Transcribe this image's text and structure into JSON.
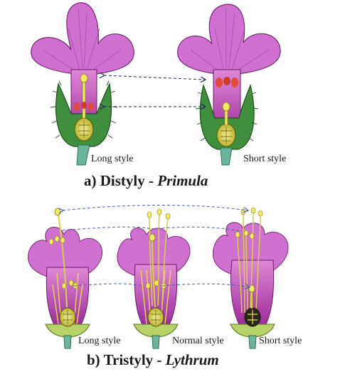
{
  "section_a": {
    "prefix": "a)",
    "title": "Distyly - ",
    "genus": "Primula",
    "labels": [
      "Long style",
      "Short style"
    ]
  },
  "section_b": {
    "prefix": "b)",
    "title": "Tristyly - ",
    "genus": "Lythrum",
    "labels": [
      "Long style",
      "Normal style",
      "Short style"
    ]
  },
  "colors": {
    "petal": "#cc66cc",
    "petal_dark": "#a03aa6",
    "tube": "#c04ab8",
    "sepal": "#3d8a3a",
    "sepal_dark": "#1f5a1f",
    "stem": "#6bb59a",
    "style": "#f2ea5c",
    "anther": "#e34a3a",
    "arrow": "#2a2a5a",
    "arrow_blue": "#4a5ac8"
  }
}
